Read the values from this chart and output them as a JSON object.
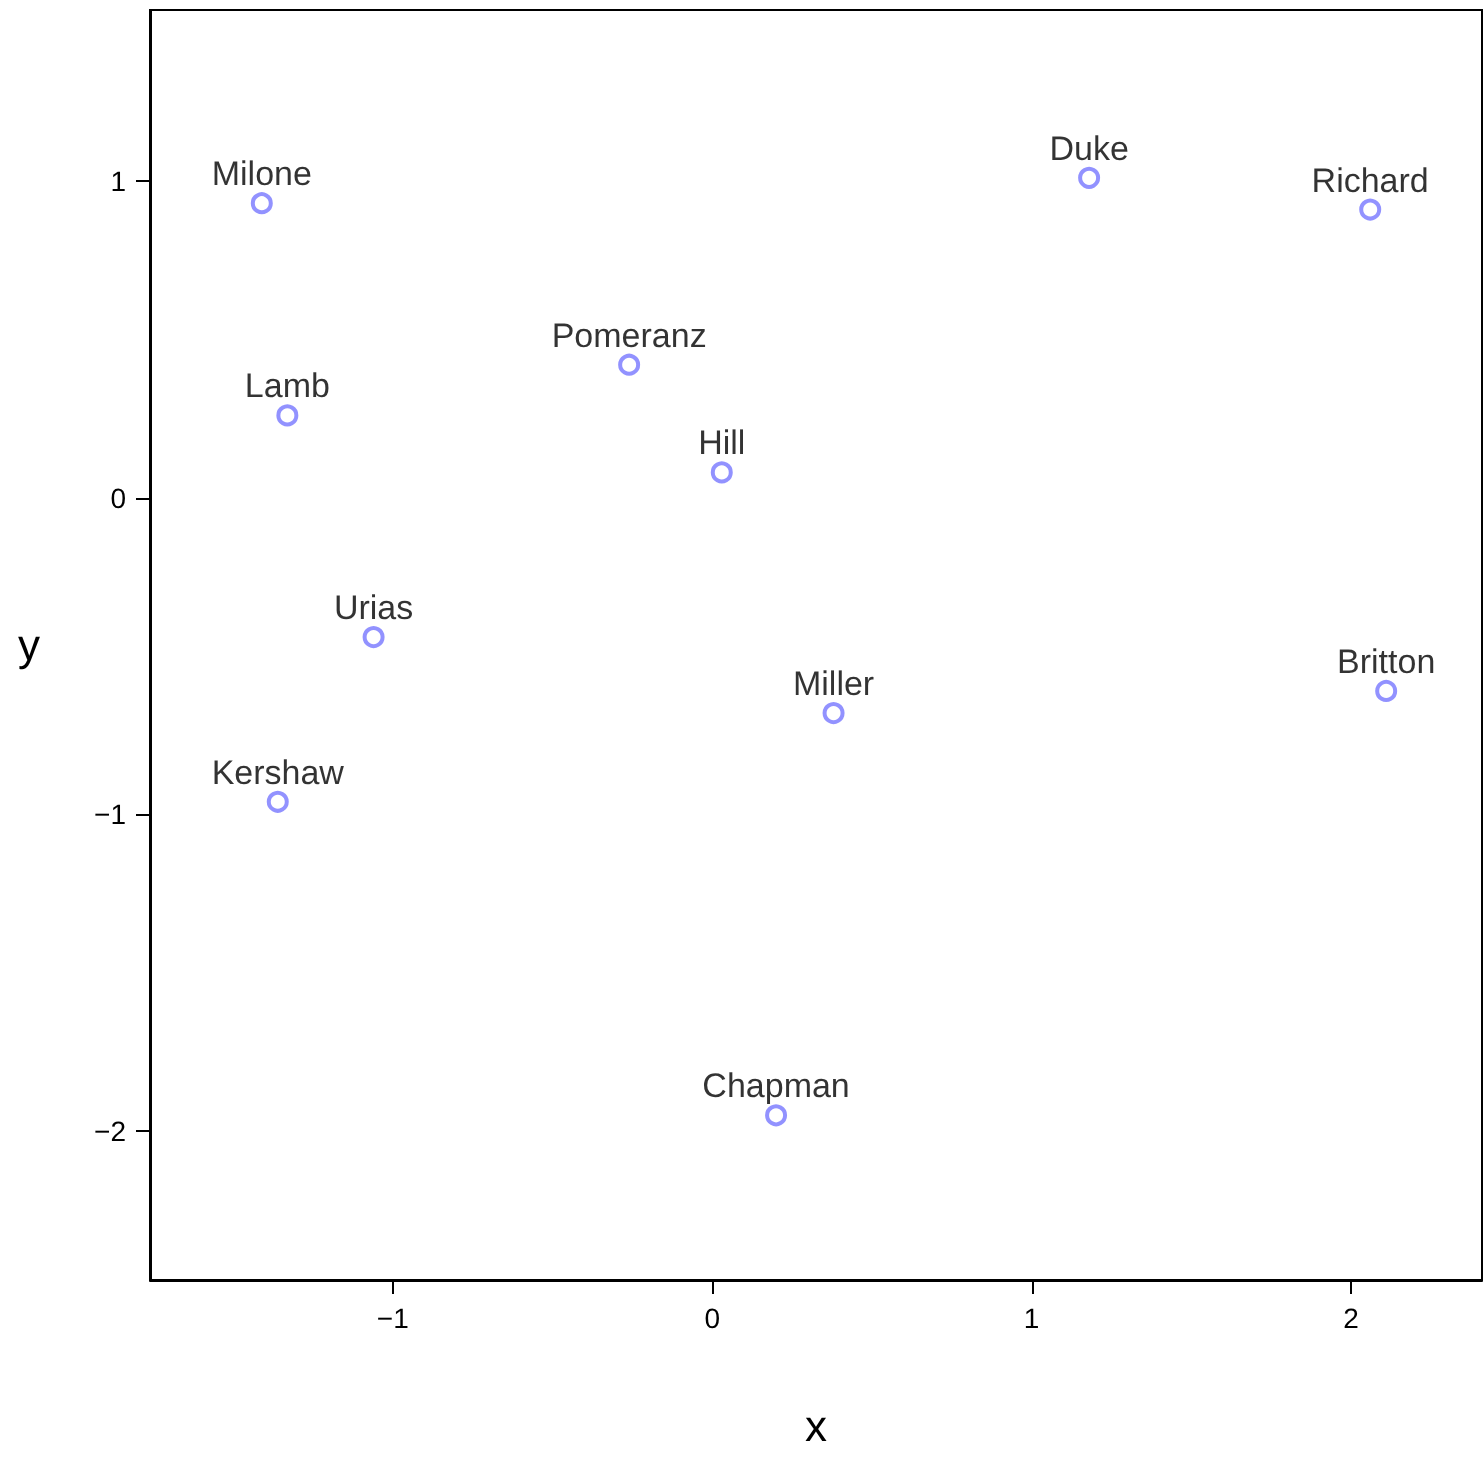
{
  "chart_data": {
    "type": "scatter",
    "xlabel": "x",
    "ylabel": "y",
    "x": [
      -1.41,
      1.18,
      2.06,
      -0.26,
      -1.33,
      0.03,
      -1.06,
      0.38,
      2.11,
      -1.36,
      0.2
    ],
    "series": [
      {
        "color": "#7777ff",
        "values": [
          0.93,
          1.01,
          0.91,
          0.42,
          0.26,
          0.08,
          -0.44,
          -0.68,
          -0.61,
          -0.96,
          -1.95
        ]
      }
    ],
    "annotations": [
      {
        "text": "Milone",
        "x": -1.41,
        "y": 0.93
      },
      {
        "text": "Duke",
        "x": 1.18,
        "y": 1.01
      },
      {
        "text": "Richard",
        "x": 2.06,
        "y": 0.91
      },
      {
        "text": "Pomeranz",
        "x": -0.26,
        "y": 0.42
      },
      {
        "text": "Lamb",
        "x": -1.33,
        "y": 0.26
      },
      {
        "text": "Hill",
        "x": 0.03,
        "y": 0.08
      },
      {
        "text": "Urias",
        "x": -1.06,
        "y": -0.44
      },
      {
        "text": "Miller",
        "x": 0.38,
        "y": -0.68
      },
      {
        "text": "Britton",
        "x": 2.11,
        "y": -0.61
      },
      {
        "text": "Kershaw",
        "x": -1.36,
        "y": -0.96
      },
      {
        "text": "Chapman",
        "x": 0.2,
        "y": -1.95
      }
    ],
    "xlim": [
      -1.76,
      2.41
    ],
    "ylim": [
      -2.47,
      1.54
    ],
    "xticks": [
      -1,
      0,
      1,
      2
    ],
    "yticks": [
      -2,
      -1,
      0,
      1
    ],
    "marker": "circle"
  }
}
